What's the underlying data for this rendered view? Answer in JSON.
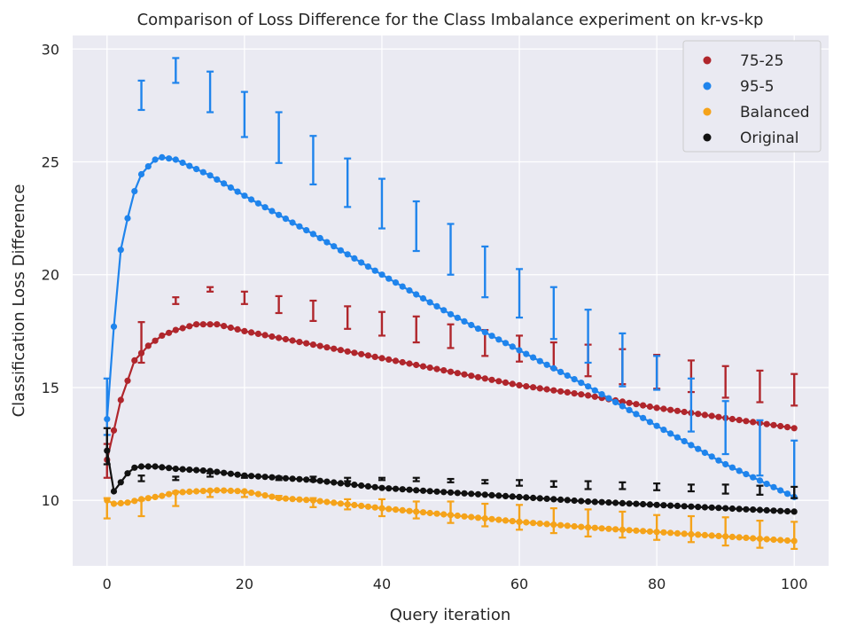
{
  "chart_data": {
    "type": "line",
    "title": "Comparison of Loss Difference for the Class Imbalance experiment on kr-vs-kp",
    "xlabel": "Query iteration",
    "ylabel": "Classification Loss Difference",
    "xlim": [
      -5,
      105
    ],
    "ylim": [
      7.1,
      30.6
    ],
    "xticks": [
      "0",
      "20",
      "40",
      "60",
      "80",
      "100"
    ],
    "yticks": [
      "10",
      "15",
      "20",
      "25",
      "30"
    ],
    "grid": true,
    "legend_position": "top-right",
    "series": [
      {
        "name": "75-25",
        "color": "#b0262c",
        "curve_keypoints": [
          [
            0,
            11.8
          ],
          [
            1,
            13.1
          ],
          [
            2,
            14.45
          ],
          [
            3,
            15.3
          ],
          [
            4,
            16.2
          ],
          [
            6,
            16.85
          ],
          [
            8,
            17.3
          ],
          [
            10,
            17.55
          ],
          [
            13,
            17.8
          ],
          [
            16,
            17.8
          ],
          [
            20,
            17.5
          ],
          [
            30,
            16.9
          ],
          [
            40,
            16.3
          ],
          [
            50,
            15.7
          ],
          [
            60,
            15.1
          ],
          [
            70,
            14.65
          ],
          [
            80,
            14.1
          ],
          [
            90,
            13.65
          ],
          [
            100,
            13.2
          ]
        ],
        "error_bars": [
          [
            0,
            11.0,
            12.5
          ],
          [
            5,
            16.1,
            17.9
          ],
          [
            10,
            18.7,
            19.0
          ],
          [
            15,
            19.25,
            19.45
          ],
          [
            20,
            18.7,
            19.25
          ],
          [
            25,
            18.3,
            19.05
          ],
          [
            30,
            17.95,
            18.85
          ],
          [
            35,
            17.6,
            18.6
          ],
          [
            40,
            17.3,
            18.35
          ],
          [
            45,
            17.0,
            18.15
          ],
          [
            50,
            16.75,
            17.8
          ],
          [
            55,
            16.4,
            17.55
          ],
          [
            60,
            16.15,
            17.3
          ],
          [
            65,
            15.85,
            17.0
          ],
          [
            70,
            15.5,
            16.9
          ],
          [
            75,
            15.15,
            16.7
          ],
          [
            80,
            14.95,
            16.45
          ],
          [
            85,
            14.8,
            16.2
          ],
          [
            90,
            14.55,
            15.95
          ],
          [
            95,
            14.35,
            15.75
          ],
          [
            100,
            14.2,
            15.6
          ]
        ]
      },
      {
        "name": "95-5",
        "color": "#1f84ec",
        "curve_keypoints": [
          [
            0,
            13.6
          ],
          [
            1,
            17.7
          ],
          [
            2,
            21.1
          ],
          [
            3,
            22.5
          ],
          [
            4,
            23.7
          ],
          [
            5,
            24.45
          ],
          [
            6,
            24.8
          ],
          [
            7,
            25.1
          ],
          [
            8,
            25.2
          ],
          [
            10,
            25.1
          ],
          [
            15,
            24.4
          ],
          [
            20,
            23.5
          ],
          [
            30,
            21.8
          ],
          [
            40,
            20.0
          ],
          [
            50,
            18.25
          ],
          [
            60,
            16.65
          ],
          [
            70,
            15.05
          ],
          [
            80,
            13.3
          ],
          [
            90,
            11.6
          ],
          [
            100,
            10.15
          ]
        ],
        "error_bars": [
          [
            0,
            12.9,
            15.4
          ],
          [
            5,
            27.3,
            28.6
          ],
          [
            10,
            28.5,
            29.6
          ],
          [
            15,
            27.2,
            29.0
          ],
          [
            20,
            26.1,
            28.1
          ],
          [
            25,
            24.95,
            27.2
          ],
          [
            30,
            24.0,
            26.15
          ],
          [
            35,
            23.0,
            25.15
          ],
          [
            40,
            22.05,
            24.25
          ],
          [
            45,
            21.05,
            23.25
          ],
          [
            50,
            20.0,
            22.25
          ],
          [
            55,
            19.0,
            21.25
          ],
          [
            60,
            18.1,
            20.25
          ],
          [
            65,
            17.15,
            19.45
          ],
          [
            70,
            16.1,
            18.45
          ],
          [
            75,
            15.05,
            17.4
          ],
          [
            80,
            14.9,
            16.4
          ],
          [
            85,
            13.05,
            15.4
          ],
          [
            90,
            12.05,
            14.4
          ],
          [
            95,
            11.1,
            13.55
          ],
          [
            100,
            10.1,
            12.65
          ]
        ]
      },
      {
        "name": "Balanced",
        "color": "#f5a31a",
        "curve_keypoints": [
          [
            0,
            10.0
          ],
          [
            1,
            9.85
          ],
          [
            3,
            9.9
          ],
          [
            5,
            10.05
          ],
          [
            8,
            10.2
          ],
          [
            10,
            10.35
          ],
          [
            13,
            10.4
          ],
          [
            16,
            10.45
          ],
          [
            20,
            10.4
          ],
          [
            25,
            10.1
          ],
          [
            30,
            10.0
          ],
          [
            40,
            9.65
          ],
          [
            50,
            9.35
          ],
          [
            60,
            9.05
          ],
          [
            70,
            8.8
          ],
          [
            80,
            8.6
          ],
          [
            90,
            8.4
          ],
          [
            100,
            8.2
          ]
        ],
        "error_bars": [
          [
            0,
            9.2,
            10.1
          ],
          [
            5,
            9.3,
            10.0
          ],
          [
            10,
            9.75,
            10.4
          ],
          [
            15,
            10.15,
            10.4
          ],
          [
            20,
            10.15,
            10.35
          ],
          [
            25,
            10.05,
            10.2
          ],
          [
            30,
            9.7,
            10.1
          ],
          [
            35,
            9.6,
            10.05
          ],
          [
            40,
            9.3,
            10.05
          ],
          [
            45,
            9.2,
            9.95
          ],
          [
            50,
            9.0,
            9.95
          ],
          [
            55,
            8.85,
            9.85
          ],
          [
            60,
            8.7,
            9.8
          ],
          [
            65,
            8.55,
            9.65
          ],
          [
            70,
            8.4,
            9.6
          ],
          [
            75,
            8.35,
            9.5
          ],
          [
            80,
            8.25,
            9.35
          ],
          [
            85,
            8.15,
            9.3
          ],
          [
            90,
            8.0,
            9.25
          ],
          [
            95,
            7.9,
            9.1
          ],
          [
            100,
            7.85,
            9.05
          ]
        ]
      },
      {
        "name": "Original",
        "color": "#111111",
        "curve_keypoints": [
          [
            0,
            12.2
          ],
          [
            1,
            10.4
          ],
          [
            2,
            10.8
          ],
          [
            3,
            11.2
          ],
          [
            4,
            11.45
          ],
          [
            5,
            11.5
          ],
          [
            7,
            11.5
          ],
          [
            10,
            11.4
          ],
          [
            15,
            11.3
          ],
          [
            20,
            11.1
          ],
          [
            30,
            10.9
          ],
          [
            40,
            10.55
          ],
          [
            50,
            10.35
          ],
          [
            60,
            10.15
          ],
          [
            70,
            9.95
          ],
          [
            80,
            9.8
          ],
          [
            90,
            9.65
          ],
          [
            100,
            9.5
          ]
        ],
        "error_bars": [
          [
            0,
            11.6,
            13.2
          ],
          [
            5,
            10.85,
            11.1
          ],
          [
            10,
            10.9,
            11.05
          ],
          [
            15,
            11.05,
            11.2
          ],
          [
            20,
            11.0,
            11.1
          ],
          [
            25,
            10.9,
            11.05
          ],
          [
            30,
            10.85,
            11.05
          ],
          [
            35,
            10.85,
            11.0
          ],
          [
            40,
            10.9,
            11.0
          ],
          [
            45,
            10.85,
            11.0
          ],
          [
            50,
            10.8,
            10.95
          ],
          [
            55,
            10.75,
            10.9
          ],
          [
            60,
            10.65,
            10.9
          ],
          [
            65,
            10.6,
            10.85
          ],
          [
            70,
            10.5,
            10.85
          ],
          [
            75,
            10.5,
            10.8
          ],
          [
            80,
            10.45,
            10.75
          ],
          [
            85,
            10.4,
            10.7
          ],
          [
            90,
            10.3,
            10.7
          ],
          [
            95,
            10.25,
            10.65
          ],
          [
            100,
            10.1,
            10.6
          ]
        ]
      }
    ]
  }
}
